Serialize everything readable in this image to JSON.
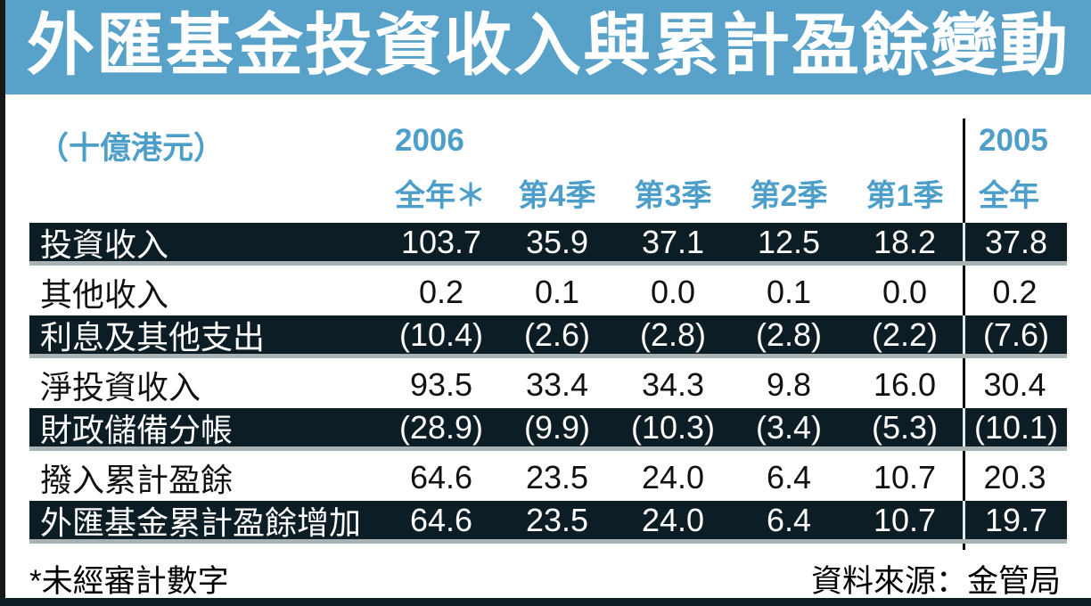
{
  "colors": {
    "banner": "#58a1c8",
    "hdr": "#4d9ec8",
    "dark": "#0d1d26",
    "gray": "#a9b2b4",
    "ink": "#111111",
    "edge": "#171717"
  },
  "chart_data": {
    "type": "table",
    "title": "外匯基金投資收入與累計盈餘變動",
    "unit_label": "（十億港元）",
    "col_groups": [
      {
        "label": "2006",
        "span": 5
      },
      {
        "label": "2005",
        "span": 1
      }
    ],
    "columns": [
      "全年＊",
      "第4季",
      "第3季",
      "第2季",
      "第1季",
      "全年"
    ],
    "rows": [
      {
        "label": "投資收入",
        "values": [
          "103.7",
          "35.9",
          "37.1",
          "12.5",
          "18.2",
          "37.8"
        ],
        "emphasis": true
      },
      {
        "label": "其他收入",
        "values": [
          "0.2",
          "0.1",
          "0.0",
          "0.1",
          "0.0",
          "0.2"
        ],
        "emphasis": false
      },
      {
        "label": "利息及其他支出",
        "values": [
          "(10.4)",
          "(2.6)",
          "(2.8)",
          "(2.8)",
          "(2.2)",
          "(7.6)"
        ],
        "emphasis": true
      },
      {
        "label": "淨投資收入",
        "values": [
          "93.5",
          "33.4",
          "34.3",
          "9.8",
          "16.0",
          "30.4"
        ],
        "emphasis": false
      },
      {
        "label": "財政儲備分帳",
        "values": [
          "(28.9)",
          "(9.9)",
          "(10.3)",
          "(3.4)",
          "(5.3)",
          "(10.1)"
        ],
        "emphasis": true
      },
      {
        "label": "撥入累計盈餘",
        "values": [
          "64.6",
          "23.5",
          "24.0",
          "6.4",
          "10.7",
          "20.3"
        ],
        "emphasis": false
      },
      {
        "label": "外匯基金累計盈餘增加",
        "values": [
          "64.6",
          "23.5",
          "24.0",
          "6.4",
          "10.7",
          "19.7"
        ],
        "emphasis": true
      }
    ],
    "footnote": "*未經審計數字",
    "source": "資料來源：金管局"
  }
}
